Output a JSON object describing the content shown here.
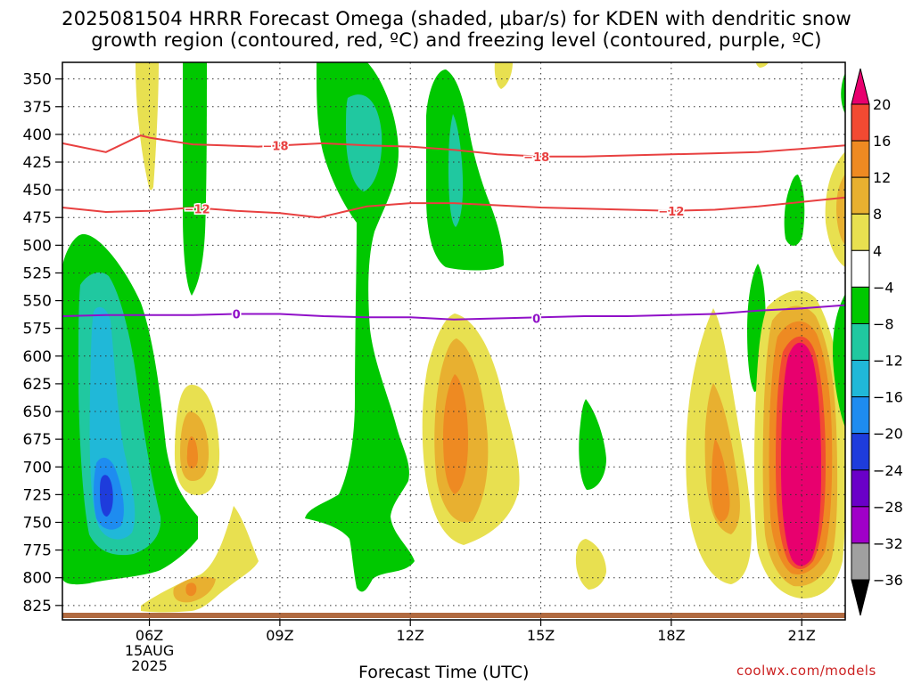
{
  "chart_data": {
    "type": "heatmap",
    "title_line1": "2025081504 HRRR Forecast Omega (shaded, μbar/s) for KDEN with dendritic snow",
    "title_line2": "growth region (contoured, red, ºC) and freezing level (contoured, purple, ºC)",
    "xlabel": "Forecast Time (UTC)",
    "x_ticks": [
      {
        "hour": 6,
        "label": "06Z",
        "sub1": "15AUG",
        "sub2": "2025"
      },
      {
        "hour": 9,
        "label": "09Z"
      },
      {
        "hour": 12,
        "label": "12Z"
      },
      {
        "hour": 15,
        "label": "15Z"
      },
      {
        "hour": 18,
        "label": "18Z"
      },
      {
        "hour": 21,
        "label": "21Z"
      }
    ],
    "xlim_hours": [
      4,
      22
    ],
    "y_unit": "hPa",
    "y_ticks": [
      350,
      375,
      400,
      425,
      450,
      475,
      500,
      525,
      550,
      575,
      600,
      625,
      650,
      675,
      700,
      725,
      750,
      775,
      800,
      825
    ],
    "ylim_hPa": [
      335,
      838
    ],
    "grid": true,
    "colorbar": {
      "labels": [
        "20",
        "16",
        "12",
        "8",
        "4",
        "−4",
        "−8",
        "−12",
        "−16",
        "−20",
        "−24",
        "−28",
        "−32",
        "−36"
      ],
      "colors": [
        "#e8006e",
        "#f24a32",
        "#ee8a22",
        "#e8b030",
        "#e8e050",
        "#ffffff",
        "#00c800",
        "#20c8a0",
        "#20b8d8",
        "#1e8cf0",
        "#1e3cdc",
        "#6a00c8",
        "#a000c8",
        "#a0a0a0",
        "#000000"
      ]
    },
    "contours": [
      {
        "name": "dgz_minus18",
        "color": "#e84040",
        "label": "−18",
        "points": [
          [
            4,
            408
          ],
          [
            5,
            416
          ],
          [
            5.8,
            401
          ],
          [
            6,
            403
          ],
          [
            7,
            409
          ],
          [
            8.5,
            411
          ],
          [
            10,
            408
          ],
          [
            11,
            410
          ],
          [
            12,
            411
          ],
          [
            13,
            414
          ],
          [
            14,
            418
          ],
          [
            15,
            420
          ],
          [
            16,
            420
          ],
          [
            17,
            419
          ],
          [
            18,
            418
          ],
          [
            19,
            417
          ],
          [
            20,
            416
          ],
          [
            21,
            413
          ],
          [
            22,
            410
          ]
        ],
        "label_at": [
          [
            8.9,
            410
          ],
          [
            14.9,
            420
          ]
        ]
      },
      {
        "name": "dgz_minus12",
        "color": "#e84040",
        "label": "−12",
        "points": [
          [
            4,
            466
          ],
          [
            5,
            470
          ],
          [
            6,
            469
          ],
          [
            7,
            466
          ],
          [
            8,
            469
          ],
          [
            9,
            471
          ],
          [
            9.9,
            475
          ],
          [
            11,
            465
          ],
          [
            12,
            462
          ],
          [
            13,
            462
          ],
          [
            14,
            464
          ],
          [
            15,
            466
          ],
          [
            16,
            467
          ],
          [
            17,
            468
          ],
          [
            18,
            469
          ],
          [
            19,
            468
          ],
          [
            20,
            465
          ],
          [
            21,
            461
          ],
          [
            22,
            457
          ]
        ],
        "label_at": [
          [
            7.1,
            467
          ],
          [
            18,
            469
          ]
        ]
      },
      {
        "name": "freezing_level_0",
        "color": "#9010c8",
        "label": "0",
        "points": [
          [
            4,
            564
          ],
          [
            5,
            563
          ],
          [
            6,
            563
          ],
          [
            7,
            563
          ],
          [
            8,
            562
          ],
          [
            9,
            562
          ],
          [
            10,
            564
          ],
          [
            11,
            565
          ],
          [
            12,
            565
          ],
          [
            13,
            567
          ],
          [
            14,
            566
          ],
          [
            15,
            565
          ],
          [
            16,
            564
          ],
          [
            17,
            564
          ],
          [
            18,
            563
          ],
          [
            19,
            562
          ],
          [
            20,
            559
          ],
          [
            21,
            557
          ],
          [
            22,
            554
          ]
        ],
        "label_at": [
          [
            8,
            562
          ],
          [
            14.9,
            566
          ]
        ]
      }
    ]
  },
  "credit": "coolwx.com/models"
}
